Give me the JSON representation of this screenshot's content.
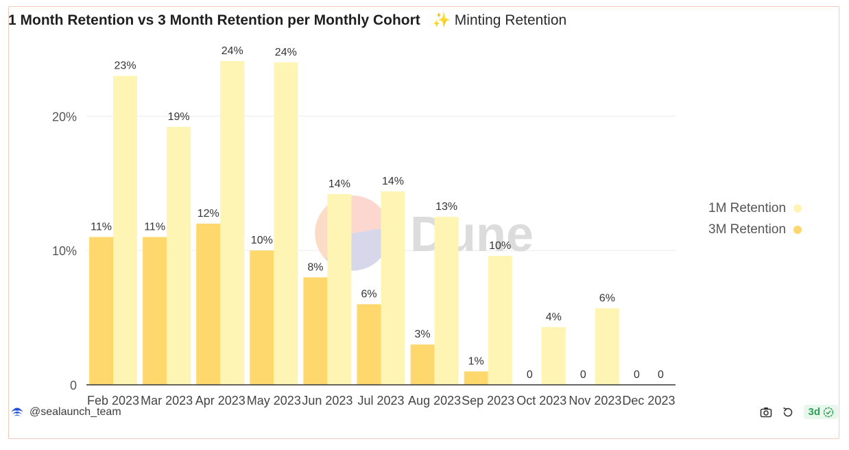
{
  "header": {
    "title": "1 Month Retention vs 3 Month Retention per Monthly Cohort",
    "subtitle": "✨ Minting Retention"
  },
  "footer": {
    "author": "@sealaunch_team",
    "refresh_badge": "3d",
    "icons": [
      "camera-icon",
      "refresh-icon",
      "check-circle-icon"
    ]
  },
  "watermark": {
    "text": "Dune"
  },
  "colors": {
    "one_month": "#fef4b4",
    "three_month": "#fed86c",
    "grid": "#ececec",
    "axis": "#333333"
  },
  "chart_data": {
    "type": "bar",
    "categories": [
      "Feb 2023",
      "Mar 2023",
      "Apr 2023",
      "May 2023",
      "Jun 2023",
      "Jul 2023",
      "Aug 2023",
      "Sep 2023",
      "Oct 2023",
      "Nov 2023",
      "Dec 2023"
    ],
    "series": [
      {
        "name": "3M Retention",
        "values": [
          11,
          11,
          12,
          10,
          8,
          6,
          3,
          1,
          0,
          0,
          0
        ],
        "labels": [
          "11%",
          "11%",
          "12%",
          "10%",
          "8%",
          "6%",
          "3%",
          "1%",
          "0",
          "0",
          "0"
        ]
      },
      {
        "name": "1M Retention",
        "values": [
          23,
          19.2,
          24.1,
          24,
          14.2,
          14.4,
          12.5,
          9.6,
          4.3,
          5.7,
          0
        ],
        "labels": [
          "23%",
          "19%",
          "24%",
          "24%",
          "14%",
          "14%",
          "13%",
          "10%",
          "4%",
          "6%",
          "0"
        ]
      }
    ],
    "y_ticks": [
      0,
      10,
      20
    ],
    "y_tick_labels": [
      "0",
      "10%",
      "20%"
    ],
    "ylim": [
      0,
      24.1
    ],
    "grid": true,
    "legend": {
      "placement": "right",
      "entries": [
        "1M Retention",
        "3M Retention"
      ]
    },
    "title": "",
    "xlabel": "",
    "ylabel": ""
  }
}
